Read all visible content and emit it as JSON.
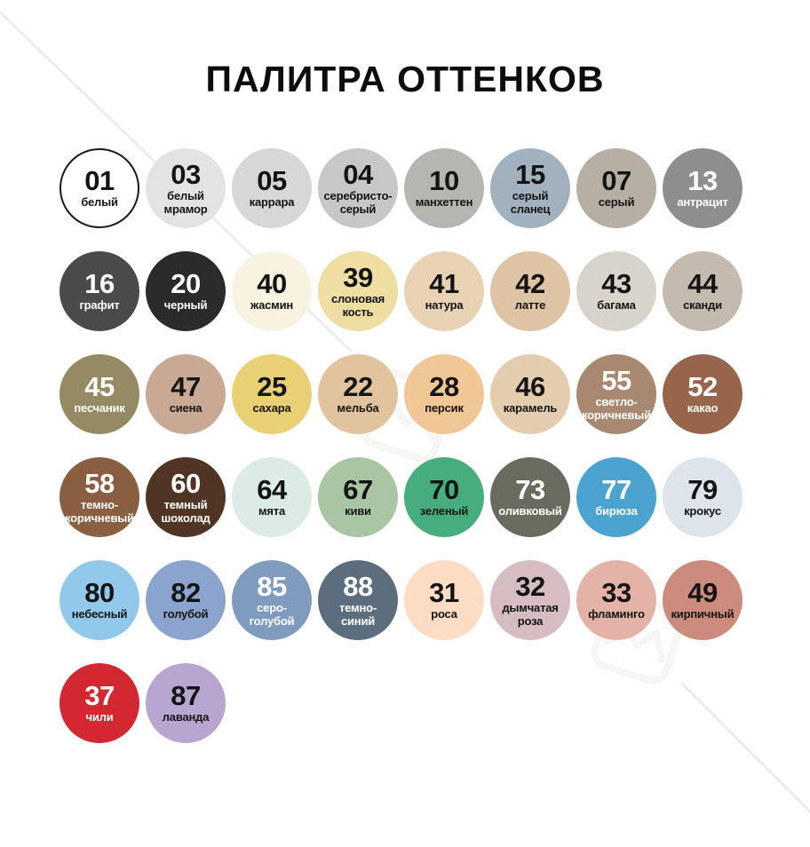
{
  "title": "ПАЛИТРА ОТТЕНКОВ",
  "palette": {
    "rows": [
      [
        {
          "code": "01",
          "name": "белый",
          "color": "#ffffff",
          "text_color": "#141414",
          "border": "#1a1a1a"
        },
        {
          "code": "03",
          "name": "белый\nмрамор",
          "color": "#e4e3e1",
          "text_color": "#141414"
        },
        {
          "code": "05",
          "name": "каррара",
          "color": "#d7d7d5",
          "text_color": "#141414"
        },
        {
          "code": "04",
          "name": "серебристо-\nсерый",
          "color": "#c7c7c5",
          "text_color": "#141414"
        },
        {
          "code": "10",
          "name": "манхеттен",
          "color": "#b3b6b1",
          "text_color": "#141414"
        },
        {
          "code": "15",
          "name": "серый\nсланец",
          "color": "#a1b1be",
          "text_color": "#141414"
        },
        {
          "code": "07",
          "name": "серый",
          "color": "#b6afa4",
          "text_color": "#141414"
        },
        {
          "code": "13",
          "name": "антрацит",
          "color": "#8e8e8e",
          "text_color": "#ffffff"
        }
      ],
      [
        {
          "code": "16",
          "name": "графит",
          "color": "#4a4a4a",
          "text_color": "#ffffff"
        },
        {
          "code": "20",
          "name": "черный",
          "color": "#2d2b29",
          "text_color": "#ffffff"
        },
        {
          "code": "40",
          "name": "жасмин",
          "color": "#f8f3e1",
          "text_color": "#141414"
        },
        {
          "code": "39",
          "name": "слоновая\nкость",
          "color": "#eedea2",
          "text_color": "#141414"
        },
        {
          "code": "41",
          "name": "натура",
          "color": "#e9d2b3",
          "text_color": "#141414"
        },
        {
          "code": "42",
          "name": "латте",
          "color": "#dfc3a5",
          "text_color": "#141414"
        },
        {
          "code": "43",
          "name": "багама",
          "color": "#d9d4cb",
          "text_color": "#141414"
        },
        {
          "code": "44",
          "name": "сканди",
          "color": "#c4bab0",
          "text_color": "#141414"
        }
      ],
      [
        {
          "code": "45",
          "name": "песчаник",
          "color": "#968a64",
          "text_color": "#ffffff"
        },
        {
          "code": "47",
          "name": "сиена",
          "color": "#c9a894",
          "text_color": "#141414"
        },
        {
          "code": "25",
          "name": "сахара",
          "color": "#e9d075",
          "text_color": "#141414"
        },
        {
          "code": "22",
          "name": "мельба",
          "color": "#e1c49d",
          "text_color": "#141414"
        },
        {
          "code": "28",
          "name": "персик",
          "color": "#f0c795",
          "text_color": "#141414"
        },
        {
          "code": "46",
          "name": "карамель",
          "color": "#e4cdae",
          "text_color": "#141414"
        },
        {
          "code": "55",
          "name": "светло-\nкоричневый",
          "color": "#a98870",
          "text_color": "#ffffff"
        },
        {
          "code": "52",
          "name": "какао",
          "color": "#97654c",
          "text_color": "#ffffff"
        }
      ],
      [
        {
          "code": "58",
          "name": "темно-\nкоричневый",
          "color": "#8a5e41",
          "text_color": "#ffffff"
        },
        {
          "code": "60",
          "name": "темный\nшоколад",
          "color": "#503524",
          "text_color": "#ffffff"
        },
        {
          "code": "64",
          "name": "мята",
          "color": "#dcebe3",
          "text_color": "#141414"
        },
        {
          "code": "67",
          "name": "киви",
          "color": "#a9c5a4",
          "text_color": "#141414"
        },
        {
          "code": "70",
          "name": "зеленый",
          "color": "#47ad7f",
          "text_color": "#141414"
        },
        {
          "code": "73",
          "name": "оливковый",
          "color": "#6a6a5f",
          "text_color": "#ffffff"
        },
        {
          "code": "77",
          "name": "бирюза",
          "color": "#4ba4d0",
          "text_color": "#ffffff"
        },
        {
          "code": "79",
          "name": "крокус",
          "color": "#dee4eb",
          "text_color": "#141414"
        }
      ],
      [
        {
          "code": "80",
          "name": "небесный",
          "color": "#92c8e9",
          "text_color": "#141414"
        },
        {
          "code": "82",
          "name": "голубой",
          "color": "#8ba4cd",
          "text_color": "#141414"
        },
        {
          "code": "85",
          "name": "серо-\nголубой",
          "color": "#7f9cbe",
          "text_color": "#ffffff"
        },
        {
          "code": "88",
          "name": "темно-\nсиний",
          "color": "#5c6e7e",
          "text_color": "#ffffff"
        },
        {
          "code": "31",
          "name": "роса",
          "color": "#fcdcc5",
          "text_color": "#141414"
        },
        {
          "code": "32",
          "name": "дымчатая\nроза",
          "color": "#d5bdc2",
          "text_color": "#141414"
        },
        {
          "code": "33",
          "name": "фламинго",
          "color": "#e5b2a7",
          "text_color": "#141414"
        },
        {
          "code": "49",
          "name": "кирпичный",
          "color": "#cc8b7c",
          "text_color": "#141414"
        }
      ],
      [
        {
          "code": "37",
          "name": "чили",
          "color": "#d32731",
          "text_color": "#ffffff"
        },
        {
          "code": "87",
          "name": "лаванда",
          "color": "#b9a6d0",
          "text_color": "#141414"
        }
      ]
    ]
  }
}
